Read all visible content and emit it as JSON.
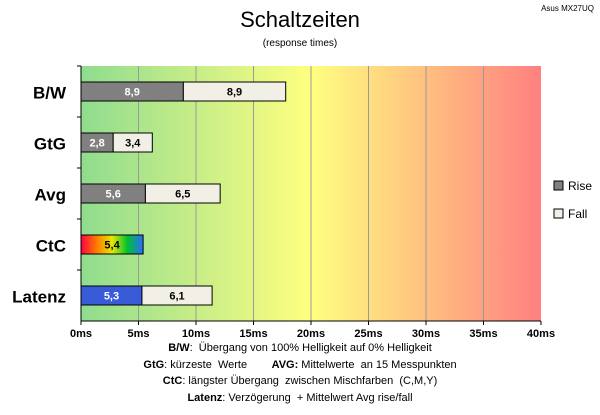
{
  "chart_data": {
    "type": "bar",
    "stacked": true,
    "orientation": "horizontal",
    "title": "Schaltzeiten",
    "subtitle": "(response times)",
    "corner_label": "Asus MX27UQ",
    "categories": [
      "B/W",
      "GtG",
      "Avg",
      "CtC",
      "Latenz"
    ],
    "series": [
      {
        "name": "Rise",
        "values": [
          8.9,
          2.8,
          5.6,
          5.4,
          5.3
        ],
        "labels": [
          "8,9",
          "2,8",
          "5,6",
          "5,4",
          "5,3"
        ],
        "color": "#808080"
      },
      {
        "name": "Fall",
        "values": [
          8.9,
          3.4,
          6.5,
          null,
          6.1
        ],
        "labels": [
          "8,9",
          "3,4",
          "6,5",
          "",
          "6,1"
        ],
        "color": "#f2f0e6"
      }
    ],
    "special_fills": {
      "CtC": "rainbow",
      "Latenz": "#3a5bd8"
    },
    "xlim": [
      0,
      40
    ],
    "xticks": [
      0,
      5,
      10,
      15,
      20,
      25,
      30,
      35,
      40
    ],
    "xtick_labels": [
      "0ms",
      "5ms",
      "10ms",
      "15ms",
      "20ms",
      "25ms",
      "30ms",
      "35ms",
      "40ms"
    ],
    "background_gradient": [
      "#8fdc8f",
      "#ffff80",
      "#ff8080"
    ],
    "grid": true,
    "legend_position": "right"
  },
  "footnotes": [
    {
      "k1": "B/W",
      "t1": ":  Übergang von 100% Helligkeit auf 0% Helligkeit",
      "k2": "",
      "t2": ""
    },
    {
      "k1": "GtG",
      "t1": ": kürzeste  Werte        ",
      "k2": "AVG:",
      "t2": " Mittelwerte  an 15 Messpunkten"
    },
    {
      "k1": "CtC",
      "t1": ": längster Übergang  zwischen Mischfarben  (C,M,Y)",
      "k2": "",
      "t2": ""
    },
    {
      "k1": "Latenz",
      "t1": ": Verzögerung  + Mittelwert Avg rise/fall",
      "k2": "",
      "t2": ""
    }
  ]
}
